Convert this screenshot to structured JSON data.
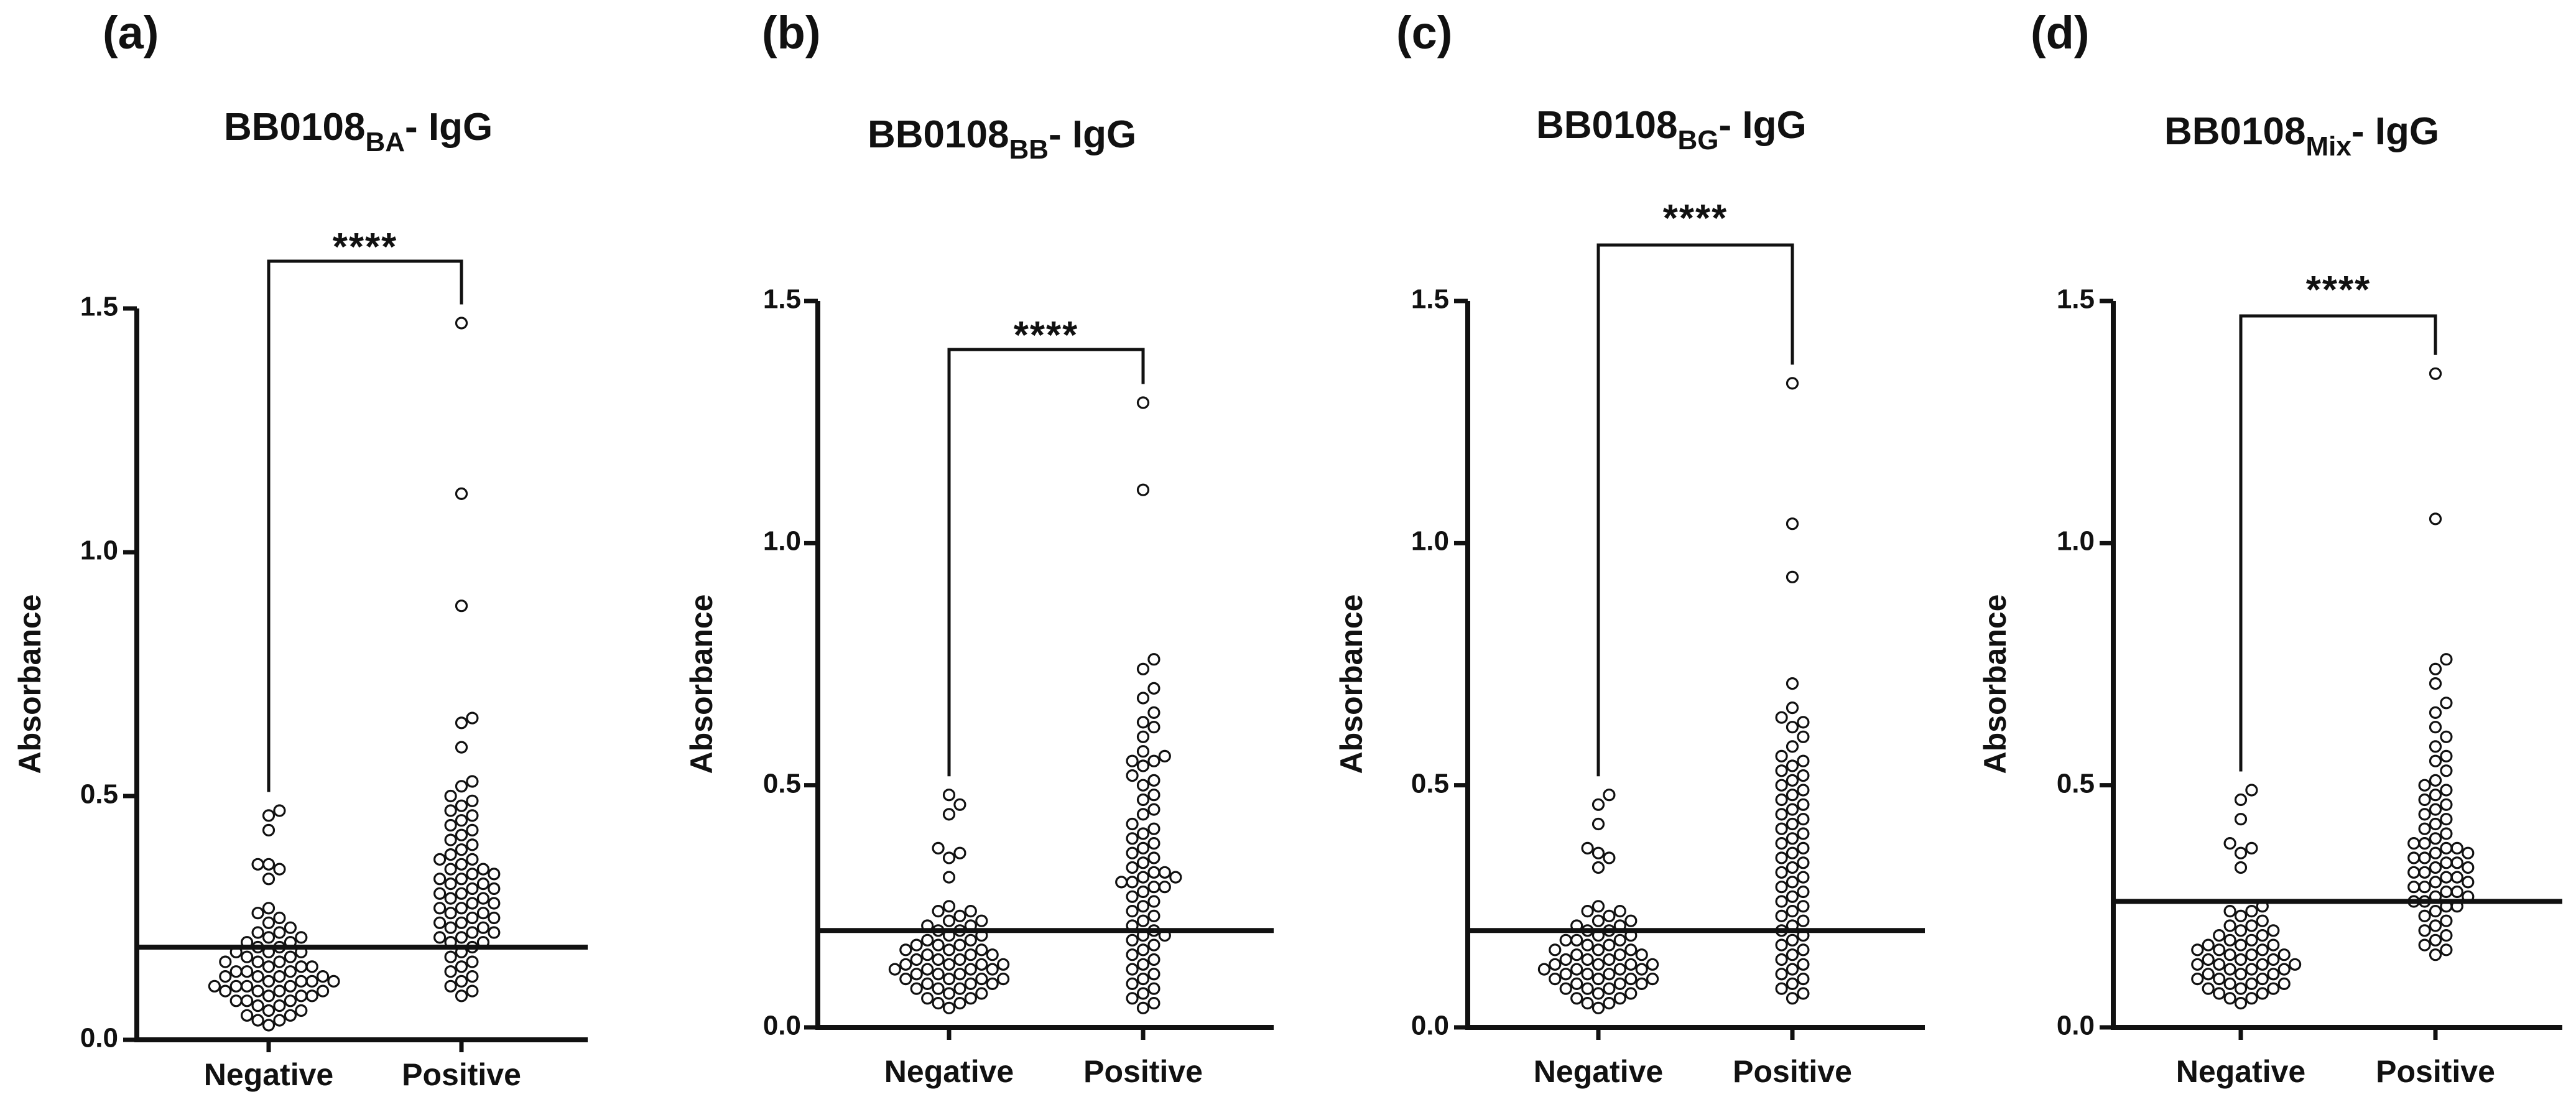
{
  "chart_data": [
    {
      "panel_label": "(a)",
      "type": "scatter",
      "title": "BB0108",
      "title_subscript": "BA",
      "title_suffix": "- IgG",
      "ylabel": "Absorbance",
      "xlabel": "",
      "categories": [
        "Negative",
        "Positive"
      ],
      "ylim": [
        0,
        1.5
      ],
      "yticks": [
        "0.0",
        "0.5",
        "1.0",
        "1.5"
      ],
      "cutoff": 0.19,
      "significance": "****",
      "series": [
        {
          "name": "Negative",
          "values": [
            0.47,
            0.46,
            0.43,
            0.36,
            0.36,
            0.35,
            0.33,
            0.27,
            0.26,
            0.25,
            0.24,
            0.23,
            0.22,
            0.22,
            0.21,
            0.21,
            0.2,
            0.2,
            0.19,
            0.19,
            0.18,
            0.18,
            0.18,
            0.17,
            0.17,
            0.16,
            0.16,
            0.16,
            0.15,
            0.15,
            0.15,
            0.14,
            0.14,
            0.14,
            0.13,
            0.13,
            0.13,
            0.13,
            0.12,
            0.12,
            0.12,
            0.12,
            0.11,
            0.11,
            0.11,
            0.11,
            0.1,
            0.1,
            0.1,
            0.1,
            0.09,
            0.09,
            0.09,
            0.08,
            0.08,
            0.08,
            0.07,
            0.07,
            0.06,
            0.06,
            0.05,
            0.05,
            0.04,
            0.04,
            0.03
          ]
        },
        {
          "name": "Positive",
          "values": [
            1.47,
            1.12,
            0.89,
            0.66,
            0.65,
            0.6,
            0.53,
            0.52,
            0.5,
            0.49,
            0.48,
            0.47,
            0.46,
            0.45,
            0.44,
            0.43,
            0.42,
            0.41,
            0.4,
            0.39,
            0.38,
            0.37,
            0.37,
            0.36,
            0.35,
            0.35,
            0.34,
            0.34,
            0.33,
            0.33,
            0.32,
            0.32,
            0.31,
            0.31,
            0.3,
            0.3,
            0.29,
            0.29,
            0.28,
            0.28,
            0.27,
            0.27,
            0.26,
            0.26,
            0.25,
            0.25,
            0.24,
            0.24,
            0.23,
            0.23,
            0.22,
            0.22,
            0.21,
            0.21,
            0.2,
            0.2,
            0.19,
            0.18,
            0.17,
            0.16,
            0.15,
            0.14,
            0.13,
            0.12,
            0.11,
            0.1,
            0.09
          ]
        }
      ]
    },
    {
      "panel_label": "(b)",
      "type": "scatter",
      "title": "BB0108",
      "title_subscript": "BB",
      "title_suffix": "- IgG",
      "ylabel": "Absorbance",
      "xlabel": "",
      "categories": [
        "Negative",
        "Positive"
      ],
      "ylim": [
        0,
        1.5
      ],
      "yticks": [
        "0.0",
        "0.5",
        "1.0",
        "1.5"
      ],
      "cutoff": 0.2,
      "significance": "****",
      "series": [
        {
          "name": "Negative",
          "values": [
            0.48,
            0.46,
            0.44,
            0.37,
            0.36,
            0.35,
            0.31,
            0.25,
            0.24,
            0.24,
            0.23,
            0.22,
            0.22,
            0.21,
            0.21,
            0.2,
            0.2,
            0.19,
            0.19,
            0.18,
            0.18,
            0.17,
            0.17,
            0.17,
            0.16,
            0.16,
            0.16,
            0.15,
            0.15,
            0.15,
            0.14,
            0.14,
            0.14,
            0.13,
            0.13,
            0.13,
            0.13,
            0.12,
            0.12,
            0.12,
            0.12,
            0.11,
            0.11,
            0.11,
            0.1,
            0.1,
            0.1,
            0.1,
            0.09,
            0.09,
            0.09,
            0.08,
            0.08,
            0.08,
            0.07,
            0.07,
            0.06,
            0.06,
            0.05,
            0.05,
            0.04
          ]
        },
        {
          "name": "Positive",
          "values": [
            1.29,
            1.11,
            0.76,
            0.74,
            0.7,
            0.68,
            0.65,
            0.63,
            0.62,
            0.6,
            0.57,
            0.56,
            0.55,
            0.55,
            0.54,
            0.52,
            0.51,
            0.5,
            0.48,
            0.47,
            0.45,
            0.44,
            0.42,
            0.41,
            0.4,
            0.39,
            0.38,
            0.37,
            0.36,
            0.35,
            0.34,
            0.33,
            0.32,
            0.32,
            0.31,
            0.31,
            0.3,
            0.3,
            0.29,
            0.29,
            0.28,
            0.27,
            0.26,
            0.25,
            0.24,
            0.23,
            0.22,
            0.21,
            0.2,
            0.19,
            0.19,
            0.18,
            0.17,
            0.16,
            0.15,
            0.14,
            0.13,
            0.12,
            0.11,
            0.1,
            0.09,
            0.08,
            0.07,
            0.06,
            0.05,
            0.04
          ]
        }
      ]
    },
    {
      "panel_label": "(c)",
      "type": "scatter",
      "title": "BB0108",
      "title_subscript": "BG",
      "title_suffix": "- IgG",
      "ylabel": "Absorbance",
      "xlabel": "",
      "categories": [
        "Negative",
        "Positive"
      ],
      "ylim": [
        0,
        1.5
      ],
      "yticks": [
        "0.0",
        "0.5",
        "1.0",
        "1.5"
      ],
      "cutoff": 0.2,
      "significance": "****",
      "series": [
        {
          "name": "Negative",
          "values": [
            0.48,
            0.46,
            0.42,
            0.37,
            0.36,
            0.35,
            0.33,
            0.25,
            0.24,
            0.24,
            0.23,
            0.22,
            0.22,
            0.21,
            0.21,
            0.2,
            0.2,
            0.19,
            0.19,
            0.18,
            0.18,
            0.18,
            0.17,
            0.17,
            0.16,
            0.16,
            0.16,
            0.15,
            0.15,
            0.15,
            0.14,
            0.14,
            0.14,
            0.13,
            0.13,
            0.13,
            0.13,
            0.12,
            0.12,
            0.12,
            0.12,
            0.11,
            0.11,
            0.11,
            0.1,
            0.1,
            0.1,
            0.1,
            0.09,
            0.09,
            0.09,
            0.08,
            0.08,
            0.08,
            0.07,
            0.07,
            0.06,
            0.06,
            0.05,
            0.05,
            0.04
          ]
        },
        {
          "name": "Positive",
          "values": [
            1.33,
            1.04,
            0.93,
            0.71,
            0.66,
            0.64,
            0.63,
            0.62,
            0.6,
            0.58,
            0.56,
            0.55,
            0.54,
            0.53,
            0.52,
            0.51,
            0.5,
            0.49,
            0.48,
            0.47,
            0.46,
            0.45,
            0.44,
            0.43,
            0.42,
            0.41,
            0.4,
            0.39,
            0.38,
            0.37,
            0.36,
            0.35,
            0.34,
            0.33,
            0.32,
            0.31,
            0.3,
            0.29,
            0.28,
            0.27,
            0.26,
            0.25,
            0.24,
            0.23,
            0.22,
            0.21,
            0.2,
            0.19,
            0.18,
            0.17,
            0.16,
            0.15,
            0.14,
            0.13,
            0.12,
            0.11,
            0.1,
            0.09,
            0.08,
            0.07,
            0.06
          ]
        }
      ]
    },
    {
      "panel_label": "(d)",
      "type": "scatter",
      "title": "BB0108",
      "title_subscript": "Mix",
      "title_suffix": "- IgG",
      "ylabel": "Absorbance",
      "xlabel": "",
      "categories": [
        "Negative",
        "Positive"
      ],
      "ylim": [
        0,
        1.5
      ],
      "yticks": [
        "0.0",
        "0.5",
        "1.0",
        "1.5"
      ],
      "cutoff": 0.26,
      "significance": "****",
      "series": [
        {
          "name": "Negative",
          "values": [
            0.49,
            0.47,
            0.43,
            0.38,
            0.37,
            0.36,
            0.33,
            0.25,
            0.24,
            0.24,
            0.23,
            0.22,
            0.21,
            0.21,
            0.2,
            0.2,
            0.19,
            0.19,
            0.18,
            0.18,
            0.17,
            0.17,
            0.17,
            0.16,
            0.16,
            0.16,
            0.15,
            0.15,
            0.15,
            0.14,
            0.14,
            0.14,
            0.13,
            0.13,
            0.13,
            0.13,
            0.12,
            0.12,
            0.12,
            0.11,
            0.11,
            0.11,
            0.1,
            0.1,
            0.1,
            0.09,
            0.09,
            0.09,
            0.08,
            0.08,
            0.08,
            0.07,
            0.07,
            0.06,
            0.06,
            0.05
          ]
        },
        {
          "name": "Positive",
          "values": [
            1.35,
            1.05,
            0.76,
            0.74,
            0.71,
            0.67,
            0.65,
            0.62,
            0.6,
            0.58,
            0.56,
            0.55,
            0.53,
            0.51,
            0.5,
            0.49,
            0.48,
            0.47,
            0.46,
            0.45,
            0.44,
            0.43,
            0.42,
            0.41,
            0.4,
            0.39,
            0.38,
            0.38,
            0.37,
            0.37,
            0.36,
            0.36,
            0.35,
            0.35,
            0.34,
            0.34,
            0.33,
            0.33,
            0.32,
            0.32,
            0.31,
            0.31,
            0.3,
            0.3,
            0.29,
            0.29,
            0.28,
            0.28,
            0.27,
            0.27,
            0.26,
            0.26,
            0.25,
            0.25,
            0.24,
            0.23,
            0.22,
            0.21,
            0.2,
            0.19,
            0.18,
            0.17,
            0.16,
            0.15
          ]
        }
      ]
    }
  ]
}
